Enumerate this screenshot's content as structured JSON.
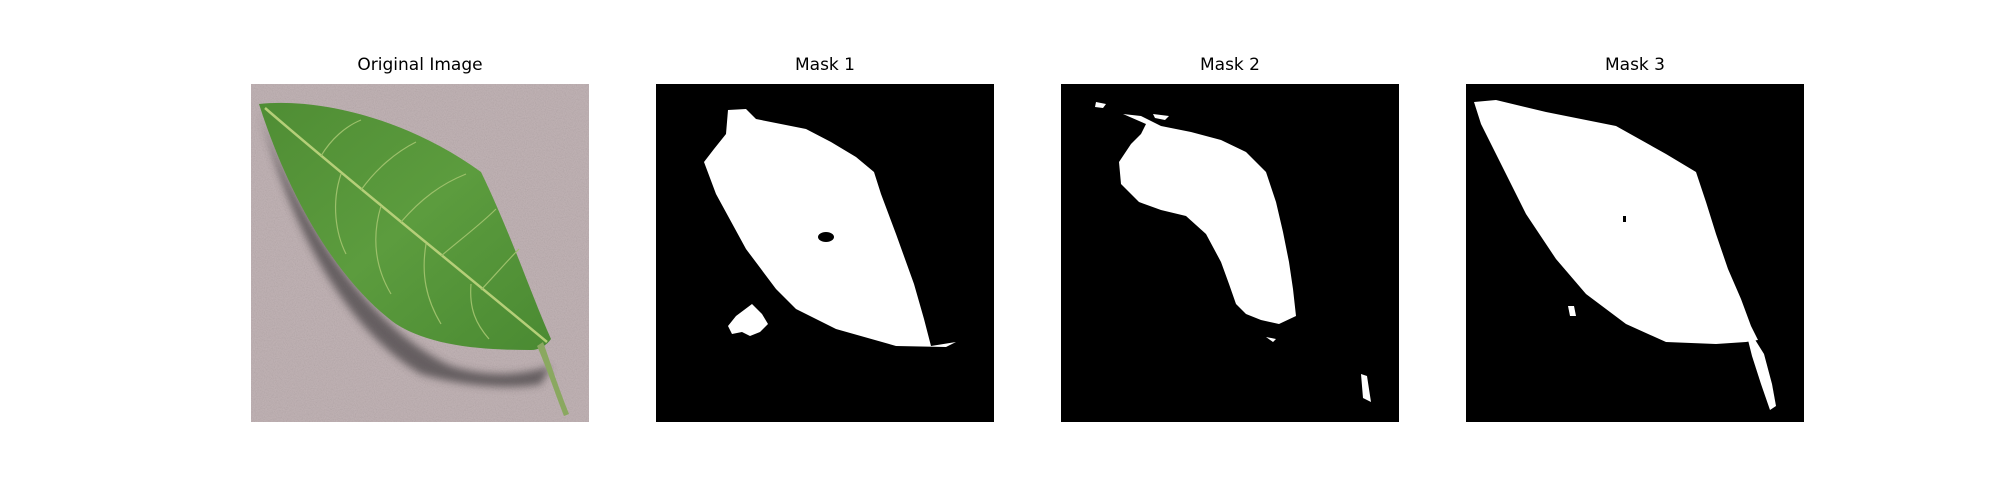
{
  "figure": {
    "panels": [
      {
        "title": "Original Image"
      },
      {
        "title": "Mask 1"
      },
      {
        "title": "Mask 2"
      },
      {
        "title": "Mask 3"
      }
    ]
  },
  "colors": {
    "background": "#c2b4b6",
    "leaf": "#5a9a3c",
    "mask_fg": "#ffffff",
    "mask_bg": "#000000"
  }
}
